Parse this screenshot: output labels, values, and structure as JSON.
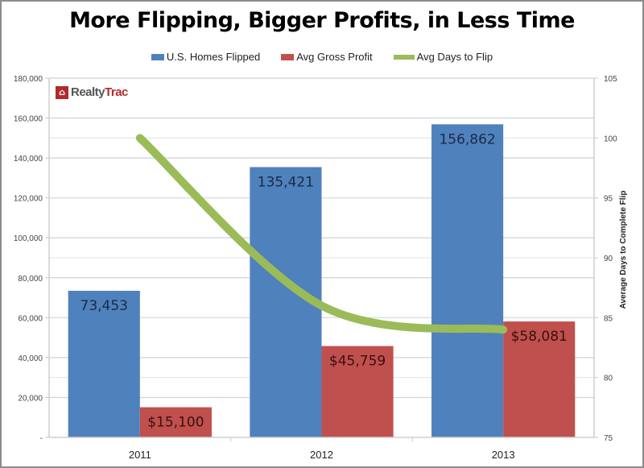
{
  "chart_data": {
    "type": "bar",
    "title": "More Flipping, Bigger Profits, in Less Time",
    "categories": [
      "2011",
      "2012",
      "2013"
    ],
    "series": [
      {
        "name": "U.S. Homes Flipped",
        "kind": "bar",
        "axis": "left",
        "color": "#4f81bd",
        "values": [
          73453,
          135421,
          156862
        ],
        "labels": [
          "73,453",
          "135,421",
          "156,862"
        ]
      },
      {
        "name": "Avg Gross Profit",
        "kind": "bar",
        "axis": "left",
        "color": "#c0504d",
        "values": [
          15100,
          45759,
          58081
        ],
        "labels": [
          "$15,100",
          "$45,759",
          "$58,081"
        ]
      },
      {
        "name": "Avg Days to Flip",
        "kind": "line",
        "axis": "right",
        "color": "#9bbb59",
        "values": [
          100,
          86,
          84
        ],
        "smooth": true
      }
    ],
    "left_axis": {
      "ylim": [
        0,
        180000
      ],
      "ticks": [
        0,
        20000,
        40000,
        60000,
        80000,
        100000,
        120000,
        140000,
        160000,
        180000
      ],
      "tick_labels": [
        "-",
        "20,000",
        "40,000",
        "60,000",
        "80,000",
        "100,000",
        "120,000",
        "140,000",
        "160,000",
        "180,000"
      ],
      "label": ""
    },
    "right_axis": {
      "ylim": [
        75,
        105
      ],
      "ticks": [
        75,
        80,
        85,
        90,
        95,
        100,
        105
      ],
      "tick_labels": [
        "75",
        "80",
        "85",
        "90",
        "95",
        "100",
        "105"
      ],
      "label": "Average Days to Complete Flip"
    },
    "xlabel": "",
    "grid": true,
    "legend_position": "top"
  },
  "logo": {
    "part1": "Realty",
    "part2": "Trac",
    "icon": "house-icon"
  }
}
